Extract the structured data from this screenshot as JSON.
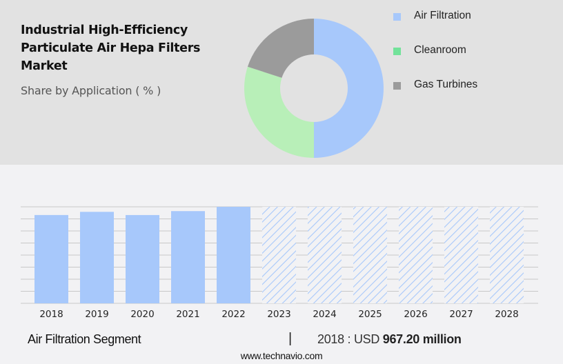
{
  "header": {
    "title": "Industrial High-Efficiency Particulate Air Hepa Filters Market",
    "subtitle": "Share by Application ( % )"
  },
  "legend": [
    {
      "label": "Air Filtration",
      "color": "#a7c8fb"
    },
    {
      "label": "Cleanroom",
      "color": "#72e29a"
    },
    {
      "label": "Gas Turbines",
      "color": "#9b9b9b"
    }
  ],
  "footer": {
    "segment": "Air Filtration Segment",
    "separator": "|",
    "year_label": "2018 : USD ",
    "value": "967.20 million",
    "url": "www.technavio.com"
  },
  "chart_data": [
    {
      "type": "pie",
      "title": "Share by Application ( % )",
      "donut": true,
      "categories": [
        "Air Filtration",
        "Cleanroom",
        "Gas Turbines"
      ],
      "values": [
        50,
        30,
        20
      ],
      "colors": [
        "#a7c8fb",
        "#b8efb8",
        "#9b9b9b"
      ],
      "legend_position": "right"
    },
    {
      "type": "bar",
      "title": "Air Filtration Segment",
      "categories": [
        "2018",
        "2019",
        "2020",
        "2021",
        "2022",
        "2023",
        "2024",
        "2025",
        "2026",
        "2027",
        "2028"
      ],
      "values": [
        967.2,
        1002,
        967,
        1010,
        1057,
        null,
        null,
        null,
        null,
        null,
        null
      ],
      "forecast": [
        false,
        false,
        false,
        false,
        false,
        true,
        true,
        true,
        true,
        true,
        true
      ],
      "value_unit": "USD million",
      "xlabel": "",
      "ylabel": "",
      "grid": true,
      "axis_ticks_visible": false,
      "annotation": "2018 : USD 967.20 million",
      "bar_color": "#a7c8fb"
    }
  ]
}
